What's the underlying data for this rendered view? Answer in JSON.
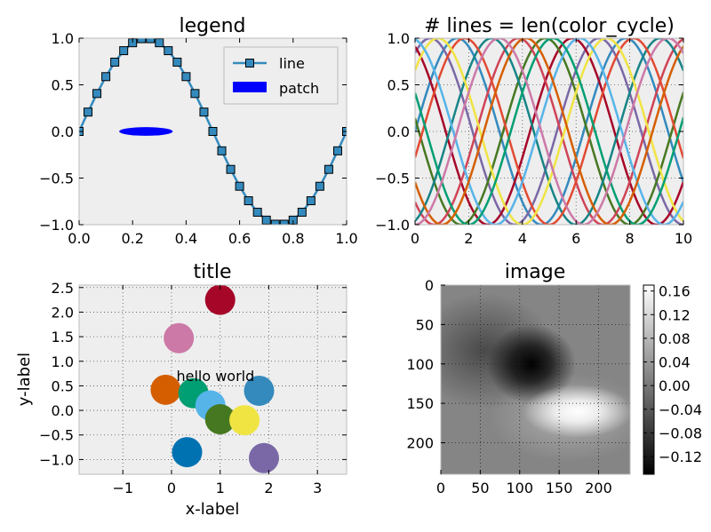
{
  "chart_data": [
    {
      "type": "line",
      "title": "legend",
      "xlim": [
        0,
        1
      ],
      "ylim": [
        -1,
        1
      ],
      "xticks": [
        "0.0",
        "0.2",
        "0.4",
        "0.6",
        "0.8",
        "1.0"
      ],
      "yticks": [
        "−1.0",
        "−0.5",
        "0.0",
        "0.5",
        "1.0"
      ],
      "series": [
        {
          "name": "line",
          "function": "sin(2*pi*x)",
          "x_start": 0,
          "x_end": 1,
          "num_points": 31,
          "color": "#348ABD"
        }
      ],
      "patch": {
        "name": "patch",
        "shape": "ellipse",
        "center": [
          0.25,
          0.0
        ],
        "width": 0.2,
        "height": 0.2,
        "color": "#0000ff"
      },
      "legend": {
        "placement": "upper-right",
        "entries": [
          "line",
          "patch"
        ]
      },
      "background": "#eeeeee",
      "grid": false
    },
    {
      "type": "line",
      "title": "# lines = len(color_cycle)",
      "xlim": [
        0,
        10
      ],
      "ylim": [
        -1,
        1
      ],
      "xticks": [
        "0",
        "2",
        "4",
        "6",
        "8",
        "10"
      ],
      "yticks": [
        "−1.0",
        "−0.5",
        "0.0",
        "0.5",
        "1.0"
      ],
      "function": "sin(x + shift)",
      "shifts": [
        0,
        1,
        2,
        3,
        4,
        5,
        6,
        7,
        8,
        9,
        10,
        11
      ],
      "colors": [
        "#348ABD",
        "#7A68A6",
        "#A60628",
        "#467821",
        "#CF4457",
        "#188487",
        "#E24A33",
        "#F0E442",
        "#56B4E9",
        "#009E73",
        "#D55E00",
        "#CC79A7"
      ],
      "background": "#eeeeee",
      "grid": true
    },
    {
      "type": "scatter",
      "title": "title",
      "xlabel": "x-label",
      "ylabel": "y-label",
      "xlim": [
        -1.9,
        3.6
      ],
      "ylim": [
        -1.3,
        2.55
      ],
      "xticks": [
        "−1",
        "0",
        "1",
        "2",
        "3"
      ],
      "yticks": [
        "−1.0",
        "−0.5",
        "0.0",
        "0.5",
        "1.0",
        "1.5",
        "2.0",
        "2.5"
      ],
      "points": [
        {
          "x": 1.0,
          "y": 2.25,
          "color": "#A60628"
        },
        {
          "x": 0.15,
          "y": 1.47,
          "color": "#CC79A7"
        },
        {
          "x": -0.12,
          "y": 0.42,
          "color": "#D55E00"
        },
        {
          "x": 0.45,
          "y": 0.35,
          "color": "#009E73"
        },
        {
          "x": 0.8,
          "y": 0.1,
          "color": "#56B4E9"
        },
        {
          "x": 1.0,
          "y": -0.18,
          "color": "#467821"
        },
        {
          "x": 1.5,
          "y": -0.2,
          "color": "#F0E442"
        },
        {
          "x": 1.8,
          "y": 0.4,
          "color": "#348ABD"
        },
        {
          "x": 0.32,
          "y": -0.85,
          "color": "#0072B2"
        },
        {
          "x": 1.9,
          "y": -0.97,
          "color": "#7A68A6"
        }
      ],
      "annotation": {
        "text": "hello world",
        "x": 0.1,
        "y": 0.6
      },
      "background": "#eeeeee",
      "grid": true
    },
    {
      "type": "heatmap",
      "title": "image",
      "xlim": [
        0,
        240
      ],
      "ylim": [
        240,
        0
      ],
      "xticks": [
        "0",
        "50",
        "100",
        "150",
        "200"
      ],
      "yticks": [
        "0",
        "50",
        "100",
        "150",
        "200"
      ],
      "colormap": "gray",
      "vmin": -0.15,
      "vmax": 0.17,
      "colorbar_ticks": [
        "0.16",
        "0.12",
        "0.08",
        "0.04",
        "0.00",
        "−0.04",
        "−0.08",
        "−0.12"
      ],
      "features": [
        {
          "kind": "minimum",
          "x": 110,
          "y": 100,
          "value": -0.15
        },
        {
          "kind": "maximum",
          "x": 170,
          "y": 160,
          "value": 0.17
        }
      ],
      "grid": true
    }
  ]
}
